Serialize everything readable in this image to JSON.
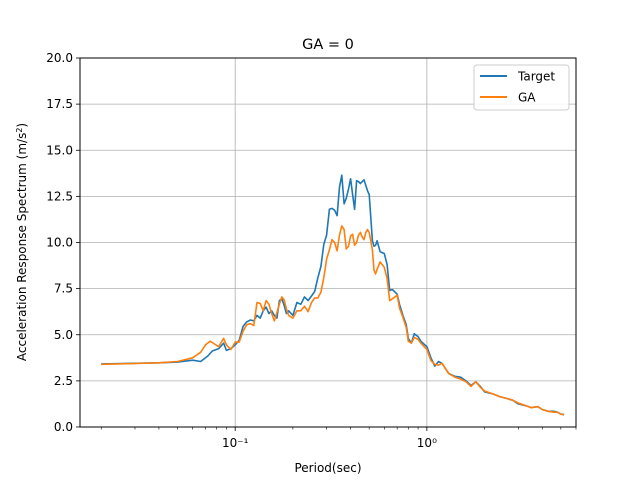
{
  "chart_data": {
    "type": "line",
    "title": "GA = 0",
    "xlabel": "Period(sec)",
    "ylabel": "Acceleration Response Spectrum (m/s²)",
    "xscale": "log",
    "xlim": [
      0.0155,
      6.0
    ],
    "ylim": [
      0,
      20
    ],
    "yticks": [
      0.0,
      2.5,
      5.0,
      7.5,
      10.0,
      12.5,
      15.0,
      17.5,
      20.0
    ],
    "ytick_labels": [
      "0.0",
      "2.5",
      "5.0",
      "7.5",
      "10.0",
      "12.5",
      "15.0",
      "17.5",
      "20.0"
    ],
    "xticks": [
      0.1,
      1.0
    ],
    "xtick_labels": [
      "10⁻¹",
      "10⁰"
    ],
    "grid": true,
    "legend_position": "top-right",
    "series": [
      {
        "name": "Target",
        "color": "#1f77b4",
        "points": [
          [
            0.02,
            3.42
          ],
          [
            0.03,
            3.45
          ],
          [
            0.04,
            3.48
          ],
          [
            0.05,
            3.52
          ],
          [
            0.06,
            3.62
          ],
          [
            0.066,
            3.55
          ],
          [
            0.072,
            3.85
          ],
          [
            0.076,
            4.12
          ],
          [
            0.082,
            4.25
          ],
          [
            0.087,
            4.55
          ],
          [
            0.09,
            4.15
          ],
          [
            0.095,
            4.25
          ],
          [
            0.1,
            4.45
          ],
          [
            0.105,
            4.7
          ],
          [
            0.11,
            5.45
          ],
          [
            0.115,
            5.7
          ],
          [
            0.12,
            5.8
          ],
          [
            0.125,
            5.75
          ],
          [
            0.13,
            6.05
          ],
          [
            0.135,
            5.9
          ],
          [
            0.14,
            6.3
          ],
          [
            0.145,
            6.5
          ],
          [
            0.15,
            6.15
          ],
          [
            0.155,
            6.3
          ],
          [
            0.16,
            6.05
          ],
          [
            0.165,
            5.9
          ],
          [
            0.17,
            6.85
          ],
          [
            0.175,
            6.95
          ],
          [
            0.18,
            6.6
          ],
          [
            0.185,
            6.15
          ],
          [
            0.19,
            6.3
          ],
          [
            0.2,
            6.05
          ],
          [
            0.21,
            6.75
          ],
          [
            0.22,
            6.65
          ],
          [
            0.23,
            7.05
          ],
          [
            0.24,
            6.85
          ],
          [
            0.25,
            7.1
          ],
          [
            0.26,
            7.35
          ],
          [
            0.27,
            8.1
          ],
          [
            0.28,
            8.7
          ],
          [
            0.29,
            9.9
          ],
          [
            0.3,
            10.4
          ],
          [
            0.31,
            11.8
          ],
          [
            0.32,
            11.85
          ],
          [
            0.33,
            11.75
          ],
          [
            0.34,
            11.45
          ],
          [
            0.35,
            13.0
          ],
          [
            0.36,
            13.65
          ],
          [
            0.37,
            12.1
          ],
          [
            0.38,
            12.4
          ],
          [
            0.39,
            12.9
          ],
          [
            0.4,
            13.45
          ],
          [
            0.41,
            12.6
          ],
          [
            0.42,
            11.8
          ],
          [
            0.43,
            13.35
          ],
          [
            0.44,
            13.3
          ],
          [
            0.45,
            13.2
          ],
          [
            0.47,
            13.4
          ],
          [
            0.49,
            12.8
          ],
          [
            0.5,
            12.6
          ],
          [
            0.52,
            10.1
          ],
          [
            0.53,
            9.8
          ],
          [
            0.54,
            9.85
          ],
          [
            0.55,
            10.1
          ],
          [
            0.57,
            9.5
          ],
          [
            0.6,
            9.4
          ],
          [
            0.62,
            8.8
          ],
          [
            0.64,
            7.4
          ],
          [
            0.66,
            7.45
          ],
          [
            0.7,
            7.2
          ],
          [
            0.72,
            6.65
          ],
          [
            0.75,
            6.05
          ],
          [
            0.78,
            5.55
          ],
          [
            0.8,
            4.8
          ],
          [
            0.83,
            4.55
          ],
          [
            0.86,
            5.05
          ],
          [
            0.9,
            4.9
          ],
          [
            0.93,
            4.65
          ],
          [
            1.0,
            4.35
          ],
          [
            1.05,
            3.75
          ],
          [
            1.1,
            3.3
          ],
          [
            1.15,
            3.55
          ],
          [
            1.2,
            3.45
          ],
          [
            1.3,
            2.9
          ],
          [
            1.4,
            2.75
          ],
          [
            1.5,
            2.7
          ],
          [
            1.6,
            2.5
          ],
          [
            1.7,
            2.25
          ],
          [
            1.8,
            2.45
          ],
          [
            1.9,
            2.2
          ],
          [
            2.0,
            1.9
          ],
          [
            2.2,
            1.8
          ],
          [
            2.4,
            1.65
          ],
          [
            2.6,
            1.55
          ],
          [
            2.8,
            1.45
          ],
          [
            3.0,
            1.25
          ],
          [
            3.3,
            1.15
          ],
          [
            3.5,
            1.05
          ],
          [
            3.8,
            1.1
          ],
          [
            4.0,
            0.95
          ],
          [
            4.3,
            0.85
          ],
          [
            4.6,
            0.85
          ],
          [
            4.8,
            0.8
          ],
          [
            5.0,
            0.7
          ],
          [
            5.2,
            0.68
          ]
        ]
      },
      {
        "name": "GA",
        "color": "#ff7f0e",
        "points": [
          [
            0.02,
            3.4
          ],
          [
            0.03,
            3.44
          ],
          [
            0.04,
            3.48
          ],
          [
            0.05,
            3.55
          ],
          [
            0.06,
            3.75
          ],
          [
            0.066,
            4.05
          ],
          [
            0.07,
            4.45
          ],
          [
            0.074,
            4.65
          ],
          [
            0.078,
            4.5
          ],
          [
            0.082,
            4.35
          ],
          [
            0.087,
            4.8
          ],
          [
            0.09,
            4.45
          ],
          [
            0.095,
            4.2
          ],
          [
            0.1,
            4.6
          ],
          [
            0.105,
            4.6
          ],
          [
            0.11,
            5.2
          ],
          [
            0.115,
            5.55
          ],
          [
            0.12,
            5.6
          ],
          [
            0.125,
            5.5
          ],
          [
            0.13,
            6.75
          ],
          [
            0.135,
            6.7
          ],
          [
            0.14,
            6.3
          ],
          [
            0.145,
            6.85
          ],
          [
            0.15,
            6.65
          ],
          [
            0.155,
            6.15
          ],
          [
            0.16,
            5.75
          ],
          [
            0.165,
            6.2
          ],
          [
            0.17,
            6.65
          ],
          [
            0.175,
            7.05
          ],
          [
            0.18,
            6.9
          ],
          [
            0.185,
            6.4
          ],
          [
            0.19,
            6.05
          ],
          [
            0.2,
            5.9
          ],
          [
            0.21,
            6.3
          ],
          [
            0.22,
            6.3
          ],
          [
            0.23,
            6.55
          ],
          [
            0.24,
            6.25
          ],
          [
            0.25,
            6.75
          ],
          [
            0.26,
            7.0
          ],
          [
            0.27,
            7.0
          ],
          [
            0.28,
            7.3
          ],
          [
            0.29,
            8.1
          ],
          [
            0.3,
            9.1
          ],
          [
            0.31,
            9.6
          ],
          [
            0.32,
            10.15
          ],
          [
            0.33,
            10.0
          ],
          [
            0.34,
            9.55
          ],
          [
            0.35,
            10.4
          ],
          [
            0.36,
            10.9
          ],
          [
            0.37,
            10.7
          ],
          [
            0.38,
            9.65
          ],
          [
            0.39,
            9.8
          ],
          [
            0.4,
            10.35
          ],
          [
            0.41,
            10.45
          ],
          [
            0.42,
            9.85
          ],
          [
            0.43,
            10.0
          ],
          [
            0.44,
            10.4
          ],
          [
            0.45,
            10.55
          ],
          [
            0.46,
            10.3
          ],
          [
            0.47,
            10.15
          ],
          [
            0.48,
            10.55
          ],
          [
            0.49,
            10.7
          ],
          [
            0.5,
            10.55
          ],
          [
            0.52,
            9.6
          ],
          [
            0.53,
            8.5
          ],
          [
            0.54,
            8.3
          ],
          [
            0.55,
            8.55
          ],
          [
            0.57,
            8.95
          ],
          [
            0.6,
            8.65
          ],
          [
            0.62,
            8.05
          ],
          [
            0.64,
            6.85
          ],
          [
            0.66,
            6.95
          ],
          [
            0.7,
            7.15
          ],
          [
            0.72,
            6.45
          ],
          [
            0.75,
            5.95
          ],
          [
            0.78,
            5.4
          ],
          [
            0.8,
            4.65
          ],
          [
            0.83,
            4.55
          ],
          [
            0.86,
            4.85
          ],
          [
            0.9,
            4.75
          ],
          [
            0.93,
            4.55
          ],
          [
            1.0,
            4.2
          ],
          [
            1.05,
            3.6
          ],
          [
            1.1,
            3.4
          ],
          [
            1.15,
            3.35
          ],
          [
            1.2,
            3.45
          ],
          [
            1.3,
            2.9
          ],
          [
            1.4,
            2.7
          ],
          [
            1.5,
            2.6
          ],
          [
            1.6,
            2.45
          ],
          [
            1.7,
            2.2
          ],
          [
            1.8,
            2.45
          ],
          [
            1.9,
            2.15
          ],
          [
            2.0,
            1.95
          ],
          [
            2.2,
            1.8
          ],
          [
            2.4,
            1.65
          ],
          [
            2.6,
            1.55
          ],
          [
            2.8,
            1.45
          ],
          [
            3.0,
            1.3
          ],
          [
            3.3,
            1.15
          ],
          [
            3.5,
            1.05
          ],
          [
            3.8,
            1.1
          ],
          [
            4.0,
            0.95
          ],
          [
            4.3,
            0.85
          ],
          [
            4.6,
            0.8
          ],
          [
            4.8,
            0.8
          ],
          [
            5.0,
            0.7
          ],
          [
            5.2,
            0.65
          ]
        ]
      }
    ]
  }
}
